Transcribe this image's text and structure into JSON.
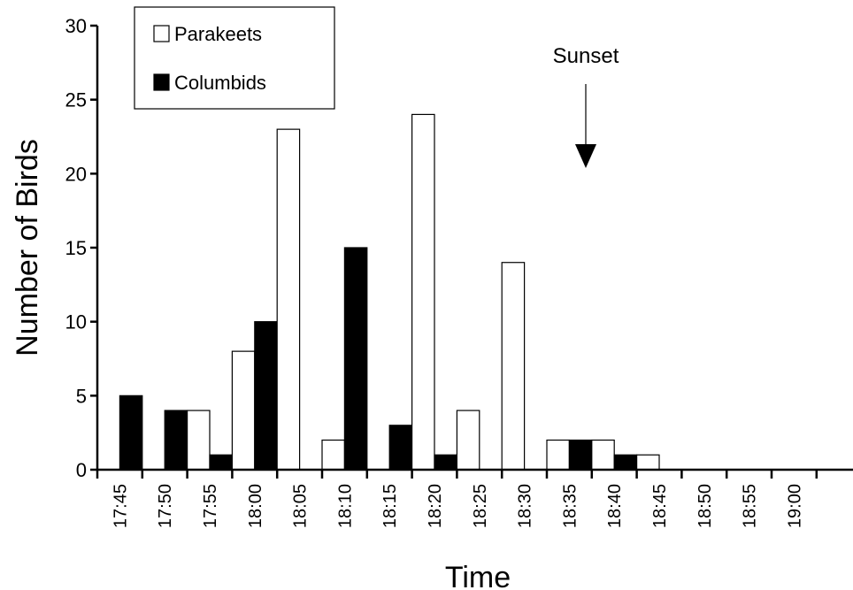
{
  "chart_data": {
    "type": "bar",
    "title": "",
    "xlabel": "Time",
    "ylabel": "Number of Birds",
    "ylim": [
      0,
      30
    ],
    "yticks": [
      "0",
      "5",
      "10",
      "15",
      "20",
      "25",
      "30"
    ],
    "categories": [
      "17:45",
      "17:50",
      "17:55",
      "18:00",
      "18:05",
      "18:10",
      "18:15",
      "18:20",
      "18:25",
      "18:30",
      "18:35",
      "18:40",
      "18:45",
      "18:50",
      "18:55",
      "19:00"
    ],
    "series": [
      {
        "name": "Parakeets",
        "color": "#ffffff",
        "values": [
          0,
          0,
          4,
          8,
          23,
          2,
          0,
          24,
          4,
          14,
          2,
          2,
          1,
          0,
          0,
          0
        ]
      },
      {
        "name": "Columbids",
        "color": "#000000",
        "values": [
          5,
          4,
          1,
          10,
          0,
          15,
          3,
          1,
          0,
          0,
          2,
          1,
          0,
          0,
          0,
          0
        ]
      }
    ],
    "legend_position": "top-left",
    "grid": false,
    "annotations": [
      {
        "text": "Sunset",
        "x": "18:35",
        "marker": "down-arrow"
      }
    ]
  }
}
